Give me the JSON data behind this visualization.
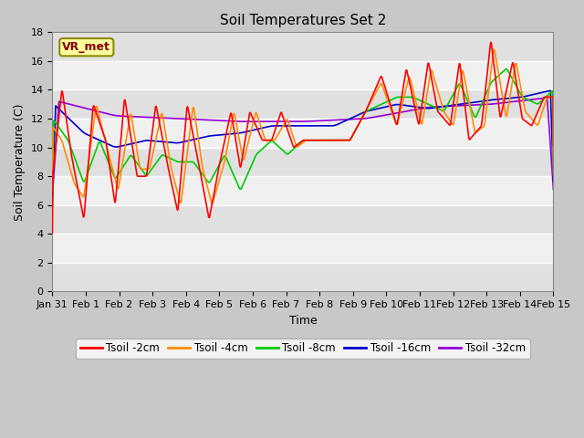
{
  "title": "Soil Temperatures Set 2",
  "xlabel": "Time",
  "ylabel": "Soil Temperature (C)",
  "ylim": [
    0,
    18
  ],
  "yticks": [
    0,
    2,
    4,
    6,
    8,
    10,
    12,
    14,
    16,
    18
  ],
  "xtick_labels": [
    "Jan 31",
    "Feb 1",
    "Feb 2",
    "Feb 3",
    "Feb 4",
    "Feb 5",
    "Feb 6",
    "Feb 7",
    "Feb 8",
    "Feb 9",
    "Feb 10",
    "Feb 11",
    "Feb 12",
    "Feb 13",
    "Feb 14",
    "Feb 15"
  ],
  "annotation_text": "VR_met",
  "annotation_color": "#8B0000",
  "annotation_bg": "#FFFFA0",
  "annotation_edge": "#8B8B00",
  "bg_color": "#C8C8C8",
  "plot_bg_light": "#F0F0F0",
  "plot_bg_dark": "#D8D8D8",
  "series_colors": [
    "#FF0000",
    "#FF8C00",
    "#00CC00",
    "#0000CD",
    "#9400D3"
  ],
  "series_labels": [
    "Tsoil -2cm",
    "Tsoil -4cm",
    "Tsoil -8cm",
    "Tsoil -16cm",
    "Tsoil -32cm"
  ],
  "line_width": 1.2,
  "title_fontsize": 11,
  "tick_fontsize": 8,
  "label_fontsize": 9,
  "legend_fontsize": 8.5
}
